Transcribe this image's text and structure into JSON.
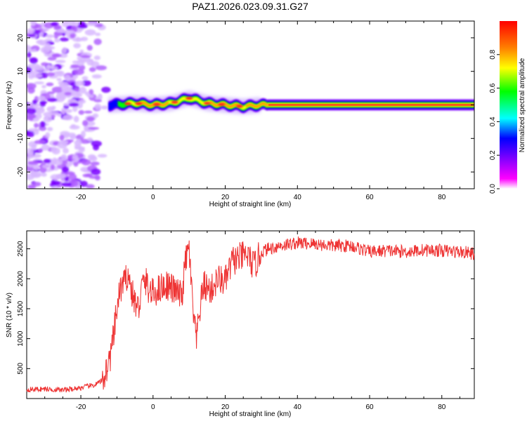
{
  "title": "PAZ1.2026.023.09.31.G27",
  "chart_data": [
    {
      "type": "heatmap",
      "xlabel": "Height of straight line (km)",
      "ylabel": "Frequency (Hz)",
      "xlim": [
        -35,
        89
      ],
      "ylim": [
        -25,
        25
      ],
      "x_ticks": [
        -20,
        0,
        20,
        40,
        60,
        80
      ],
      "y_ticks": [
        -20,
        -10,
        0,
        10,
        20
      ],
      "colorbar": {
        "label": "Normalized spectral amplitude",
        "range": [
          0,
          1
        ],
        "ticks": [
          0.0,
          0.2,
          0.4,
          0.6,
          0.8
        ],
        "tick_labels": [
          "0.0",
          "0.2",
          "0.4",
          "0.6",
          "0.8"
        ],
        "colors": [
          "#ffffff",
          "#ff00ff",
          "#8000ff",
          "#0000ff",
          "#00ffff",
          "#00ff00",
          "#ffff00",
          "#ff8000",
          "#ff0000"
        ]
      },
      "ridge": {
        "x": [
          -12,
          -5,
          0,
          5,
          10,
          15,
          20,
          25,
          30,
          40,
          60,
          89
        ],
        "freq_hz": [
          0,
          0.5,
          0,
          0.5,
          2,
          0.5,
          0,
          -0.5,
          0,
          0,
          0,
          0
        ],
        "peak_amplitude": [
          0.45,
          0.85,
          0.9,
          0.85,
          0.8,
          0.85,
          0.9,
          0.85,
          0.9,
          0.95,
          0.95,
          0.95
        ]
      },
      "noise_region_x": [
        -35,
        -12
      ]
    },
    {
      "type": "line",
      "xlabel": "Height of straight line (km)",
      "ylabel": "SNR (10 * v/v)",
      "xlim": [
        -35,
        89
      ],
      "ylim": [
        0,
        2800
      ],
      "x_ticks": [
        -20,
        0,
        20,
        40,
        60,
        80
      ],
      "y_ticks": [
        500,
        1000,
        1500,
        2000,
        2500
      ],
      "series": [
        {
          "name": "SNR",
          "color": "#ee3333",
          "x": [
            -35,
            -30,
            -25,
            -20,
            -16,
            -14,
            -12,
            -11,
            -10,
            -9,
            -8,
            -7,
            -6,
            -5,
            -4,
            -3,
            -2,
            -1,
            0,
            2,
            4,
            6,
            8,
            9,
            10,
            11,
            12,
            13,
            14,
            16,
            18,
            20,
            22,
            24,
            26,
            28,
            30,
            32,
            35,
            40,
            45,
            50,
            55,
            60,
            65,
            70,
            75,
            80,
            85,
            89
          ],
          "y": [
            150,
            160,
            140,
            180,
            230,
            300,
            650,
            1000,
            1500,
            1850,
            1900,
            2100,
            1800,
            1600,
            1500,
            1900,
            1950,
            1800,
            1750,
            1850,
            1900,
            1800,
            1700,
            2300,
            2500,
            1500,
            950,
            1500,
            1900,
            1800,
            2000,
            1950,
            2300,
            2350,
            2400,
            2200,
            2450,
            2500,
            2550,
            2600,
            2580,
            2550,
            2550,
            2450,
            2470,
            2450,
            2480,
            2470,
            2450,
            2420
          ]
        }
      ]
    }
  ]
}
